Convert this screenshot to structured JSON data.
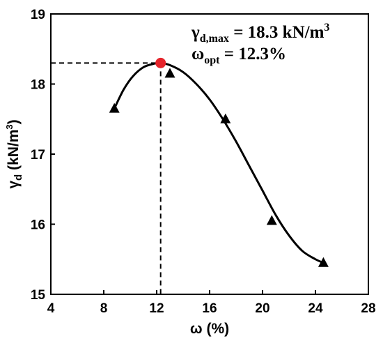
{
  "chart_data": {
    "type": "scatter",
    "xlabel_symbol": "ω",
    "xlabel_unit": "(%)",
    "ylabel_symbol": "γ",
    "ylabel_sub": "d",
    "ylabel_unit": "(kN/m",
    "ylabel_unit_sup": "3",
    "ylabel_unit_close": ")",
    "xlim": [
      4,
      28
    ],
    "ylim": [
      15,
      19
    ],
    "xticks": [
      4,
      8,
      12,
      16,
      20,
      24,
      28
    ],
    "yticks": [
      15,
      16,
      17,
      18,
      19
    ],
    "grid": false,
    "series": [
      {
        "marker": "triangle",
        "color": "#000000",
        "x": [
          8.8,
          13.0,
          17.2,
          20.7,
          24.6
        ],
        "y": [
          17.65,
          18.15,
          17.5,
          16.05,
          15.45
        ]
      }
    ],
    "fit_curve": {
      "color": "#000000",
      "x": [
        8.8,
        9.5,
        10.2,
        11.0,
        11.8,
        12.3,
        13.0,
        14.0,
        15.0,
        16.0,
        17.0,
        18.0,
        19.0,
        20.0,
        21.0,
        22.0,
        23.0,
        24.0,
        24.6
      ],
      "y": [
        17.65,
        17.92,
        18.11,
        18.24,
        18.29,
        18.3,
        18.27,
        18.17,
        18.0,
        17.78,
        17.5,
        17.18,
        16.83,
        16.48,
        16.13,
        15.84,
        15.62,
        15.5,
        15.45
      ]
    },
    "optimum_point": {
      "x": 12.3,
      "y": 18.3,
      "color": "#e5242b"
    },
    "annotation": {
      "line1_sym": "γ",
      "line1_sub": "d,max",
      "line1_text": " = 18.3 kN/m",
      "line1_sup": "3",
      "line2_sym": "ω",
      "line2_sub": "opt",
      "line2_text": " = 12.3%"
    }
  }
}
